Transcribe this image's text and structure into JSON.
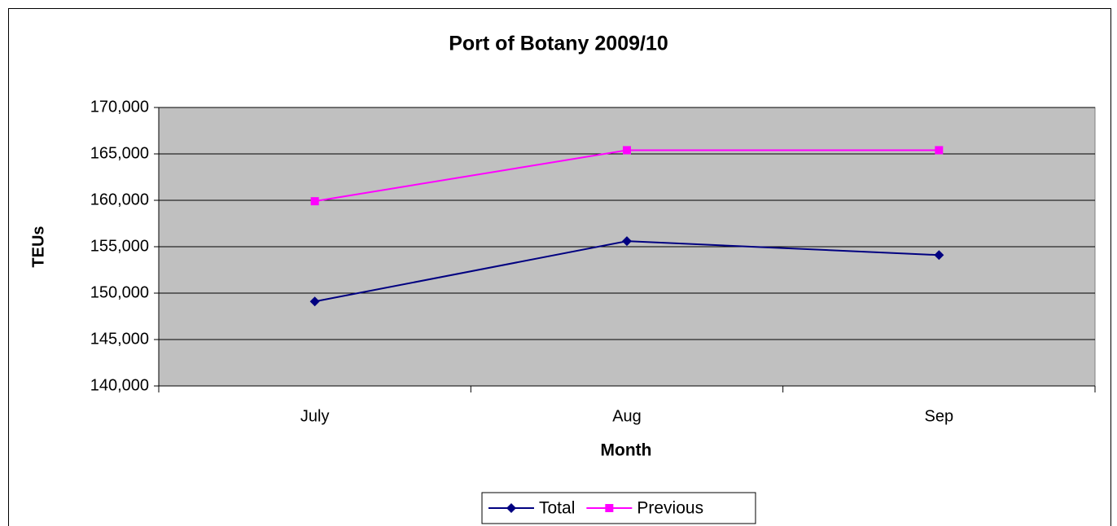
{
  "chart_data": {
    "type": "line",
    "title": "Port of Botany 2009/10",
    "x_label": "Month",
    "y_label": "TEUs",
    "categories": [
      "July",
      "Aug",
      "Sep"
    ],
    "series": [
      {
        "name": "Total",
        "color": "#000080",
        "marker": "diamond",
        "values": [
          149100,
          155600,
          154100
        ]
      },
      {
        "name": "Previous",
        "color": "#ff00ff",
        "marker": "square",
        "values": [
          159900,
          165400,
          165400
        ]
      }
    ],
    "ylim": [
      140000,
      170000
    ],
    "yticks": [
      {
        "value": 140000,
        "label": "140,000"
      },
      {
        "value": 145000,
        "label": "145,000"
      },
      {
        "value": 150000,
        "label": "150,000"
      },
      {
        "value": 155000,
        "label": "155,000"
      },
      {
        "value": 160000,
        "label": "160,000"
      },
      {
        "value": 165000,
        "label": "165,000"
      },
      {
        "value": 170000,
        "label": "170,000"
      }
    ],
    "grid": true,
    "legend": "bottom",
    "plot_background": "#c0c0c0"
  }
}
